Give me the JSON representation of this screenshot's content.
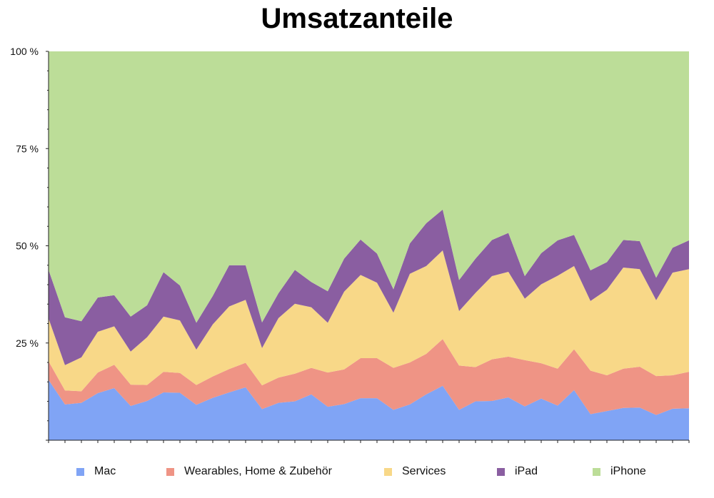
{
  "chart_data": {
    "type": "area",
    "stacked": true,
    "title": "Umsatzanteile",
    "xlabel": "",
    "ylabel": "",
    "ylim": [
      0,
      100
    ],
    "yticks": [
      0,
      25,
      50,
      75,
      100
    ],
    "ytick_labels": [
      "",
      "25 %",
      "50 %",
      "75 %",
      "100 %"
    ],
    "grid": false,
    "legend": "bottom",
    "series": [
      {
        "name": "Mac",
        "color": "#80a4f5",
        "values": [
          15.5,
          9.2,
          9.6,
          12.1,
          13.4,
          8.8,
          10.1,
          12.3,
          12.2,
          9.1,
          10.9,
          12.3,
          13.6,
          8.0,
          9.6,
          10.0,
          11.8,
          8.6,
          9.3,
          10.8,
          10.8,
          7.8,
          9.2,
          11.8,
          14.0,
          7.8,
          10.0,
          10.1,
          11.0,
          8.7,
          10.7,
          8.9,
          12.9,
          6.7,
          7.5,
          8.3,
          8.4,
          6.5,
          8.1,
          8.2
        ]
      },
      {
        "name": "Wearables, Home & Zubehör",
        "color": "#ef9485",
        "values": [
          4.8,
          3.6,
          3.0,
          5.3,
          6.0,
          5.5,
          4.1,
          5.3,
          5.1,
          5.1,
          5.5,
          6.0,
          6.3,
          6.1,
          6.5,
          7.1,
          6.8,
          8.8,
          8.9,
          10.3,
          10.3,
          10.8,
          10.8,
          10.4,
          12.0,
          11.4,
          8.8,
          10.7,
          10.5,
          11.9,
          9.1,
          9.5,
          10.5,
          11.2,
          9.2,
          10.1,
          10.5,
          10.0,
          8.6,
          9.4
        ]
      },
      {
        "name": "Services",
        "color": "#f8d888",
        "values": [
          11.0,
          6.5,
          8.7,
          10.5,
          9.9,
          8.5,
          12.3,
          14.2,
          13.5,
          9.1,
          13.4,
          16.1,
          16.2,
          9.6,
          15.3,
          18.0,
          15.6,
          12.8,
          20.0,
          21.4,
          19.4,
          14.2,
          22.8,
          22.6,
          22.8,
          14.0,
          19.1,
          21.4,
          21.8,
          15.8,
          20.3,
          23.9,
          21.4,
          17.9,
          22.0,
          26.0,
          25.1,
          19.5,
          26.4,
          26.4
        ]
      },
      {
        "name": "iPad",
        "color": "#8a5ea1",
        "values": [
          12.5,
          12.3,
          9.3,
          8.8,
          8.0,
          9.0,
          8.2,
          11.4,
          9.0,
          6.9,
          7.3,
          10.6,
          8.9,
          6.6,
          6.4,
          8.7,
          6.5,
          8.1,
          8.5,
          9.1,
          7.5,
          6.0,
          7.8,
          11.0,
          10.5,
          8.0,
          8.8,
          9.3,
          10.0,
          5.8,
          8.0,
          9.1,
          8.0,
          7.9,
          7.1,
          7.1,
          7.2,
          5.8,
          6.4,
          7.4
        ]
      },
      {
        "name": "iPhone",
        "color": "#bcdd98",
        "values": [
          56.2,
          68.4,
          69.4,
          63.3,
          62.7,
          68.2,
          65.3,
          56.8,
          60.2,
          69.8,
          62.9,
          55.0,
          55.0,
          69.7,
          62.2,
          56.2,
          59.3,
          61.7,
          53.3,
          48.4,
          52.0,
          61.2,
          49.4,
          44.2,
          40.7,
          58.8,
          53.3,
          48.5,
          46.7,
          57.8,
          51.9,
          48.6,
          47.2,
          56.3,
          54.2,
          48.5,
          48.8,
          58.2,
          50.5,
          48.6
        ]
      }
    ]
  }
}
